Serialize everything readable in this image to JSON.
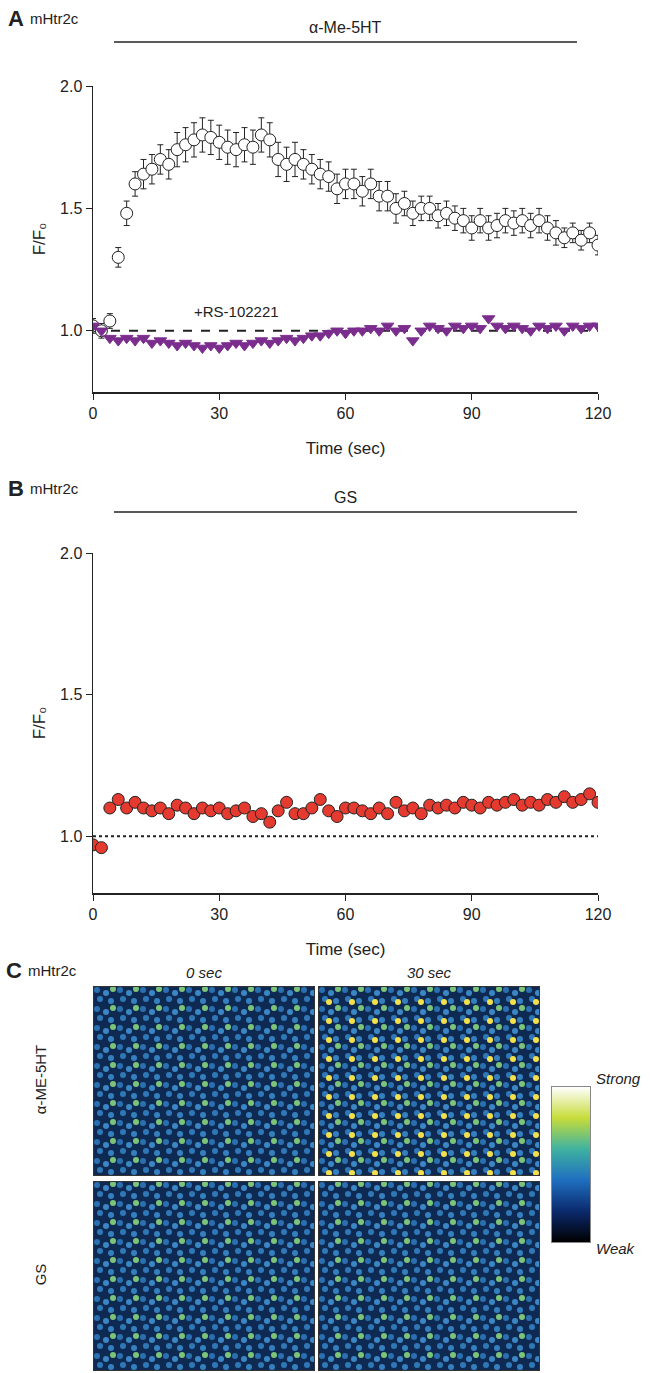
{
  "chart_data": [
    {
      "type": "scatter",
      "panel": "A",
      "title": "mHtr2c",
      "x_label": "Time (sec)",
      "y_label": "F/F₀",
      "xlim": [
        0,
        120
      ],
      "xticks": [
        0,
        30,
        60,
        90,
        120
      ],
      "ylim": [
        0.75,
        2.0
      ],
      "yticks": [
        {
          "value": 1.0,
          "label": "1.0"
        },
        {
          "value": 1.5,
          "label": "1.5"
        },
        {
          "value": 2.0,
          "label": "2.0"
        }
      ],
      "grid": false,
      "application": {
        "label": "α-Me-5HT",
        "start": 5,
        "end": 115
      },
      "reference_line": {
        "value": 1.0,
        "line_style": "dash"
      },
      "annotations": [
        {
          "text": "+RS-102221",
          "x": 34,
          "y": 1.08
        }
      ],
      "x": [
        0,
        2,
        4,
        6,
        8,
        10,
        12,
        14,
        16,
        18,
        20,
        22,
        24,
        26,
        28,
        30,
        32,
        34,
        36,
        38,
        40,
        42,
        44,
        46,
        48,
        50,
        52,
        54,
        56,
        58,
        60,
        62,
        64,
        66,
        68,
        70,
        72,
        74,
        76,
        78,
        80,
        82,
        84,
        86,
        88,
        90,
        92,
        94,
        96,
        98,
        100,
        102,
        104,
        106,
        108,
        110,
        112,
        114,
        116,
        118,
        120
      ],
      "series": [
        {
          "color": "#ffffff",
          "marker": "circle",
          "values": [
            1.02,
            1.0,
            1.04,
            1.3,
            1.48,
            1.6,
            1.64,
            1.66,
            1.7,
            1.68,
            1.74,
            1.76,
            1.78,
            1.8,
            1.79,
            1.77,
            1.75,
            1.74,
            1.76,
            1.75,
            1.8,
            1.78,
            1.7,
            1.68,
            1.7,
            1.68,
            1.66,
            1.64,
            1.63,
            1.58,
            1.6,
            1.6,
            1.57,
            1.6,
            1.55,
            1.55,
            1.5,
            1.52,
            1.48,
            1.5,
            1.5,
            1.47,
            1.48,
            1.46,
            1.45,
            1.42,
            1.45,
            1.42,
            1.43,
            1.45,
            1.44,
            1.45,
            1.43,
            1.45,
            1.42,
            1.4,
            1.38,
            1.4,
            1.37,
            1.4,
            1.35
          ],
          "errors": [
            0.03,
            0.03,
            0.03,
            0.04,
            0.05,
            0.05,
            0.06,
            0.06,
            0.06,
            0.06,
            0.07,
            0.07,
            0.07,
            0.07,
            0.07,
            0.07,
            0.07,
            0.07,
            0.07,
            0.07,
            0.07,
            0.07,
            0.07,
            0.07,
            0.07,
            0.06,
            0.06,
            0.06,
            0.06,
            0.06,
            0.06,
            0.06,
            0.06,
            0.06,
            0.06,
            0.06,
            0.06,
            0.05,
            0.05,
            0.05,
            0.05,
            0.05,
            0.05,
            0.05,
            0.05,
            0.05,
            0.05,
            0.05,
            0.05,
            0.05,
            0.05,
            0.05,
            0.05,
            0.05,
            0.05,
            0.05,
            0.04,
            0.04,
            0.04,
            0.04,
            0.04
          ]
        },
        {
          "color": "#7b2d8e",
          "marker": "triangle-down",
          "values": [
            1.02,
            1.0,
            0.97,
            0.96,
            0.97,
            0.96,
            0.97,
            0.95,
            0.96,
            0.95,
            0.94,
            0.95,
            0.94,
            0.93,
            0.94,
            0.93,
            0.94,
            0.95,
            0.94,
            0.95,
            0.96,
            0.95,
            0.96,
            0.97,
            0.96,
            0.97,
            0.98,
            0.98,
            0.99,
            1.0,
            0.99,
            1.0,
            1.0,
            1.01,
            1.0,
            1.02,
            1.0,
            1.01,
            0.96,
            1.0,
            1.02,
            1.01,
            1.0,
            1.02,
            1.01,
            1.02,
            1.01,
            1.05,
            1.02,
            1.01,
            1.02,
            1.01,
            1.0,
            1.02,
            1.01,
            1.02,
            1.0,
            1.02,
            1.01,
            1.02,
            1.02
          ]
        }
      ]
    },
    {
      "type": "scatter",
      "panel": "B",
      "title": "mHtr2c",
      "x_label": "Time (sec)",
      "y_label": "F/F₀",
      "xlim": [
        0,
        120
      ],
      "xticks": [
        0,
        30,
        60,
        90,
        120
      ],
      "ylim": [
        0.8,
        2.0
      ],
      "yticks": [
        {
          "value": 1.0,
          "label": "1.0"
        },
        {
          "value": 1.5,
          "label": "1.5"
        },
        {
          "value": 2.0,
          "label": "2.0"
        }
      ],
      "grid": false,
      "application": {
        "label": "GS",
        "start": 5,
        "end": 115
      },
      "reference_line": {
        "value": 1.0,
        "line_style": "dot"
      },
      "x": [
        0,
        2,
        4,
        6,
        8,
        10,
        12,
        14,
        16,
        18,
        20,
        22,
        24,
        26,
        28,
        30,
        32,
        34,
        36,
        38,
        40,
        42,
        44,
        46,
        48,
        50,
        52,
        54,
        56,
        58,
        60,
        62,
        64,
        66,
        68,
        70,
        72,
        74,
        76,
        78,
        80,
        82,
        84,
        86,
        88,
        90,
        92,
        94,
        96,
        98,
        100,
        102,
        104,
        106,
        108,
        110,
        112,
        114,
        116,
        118,
        120
      ],
      "series": [
        {
          "color": "#e53a2f",
          "marker": "circle",
          "values": [
            0.97,
            0.96,
            1.1,
            1.13,
            1.1,
            1.12,
            1.1,
            1.09,
            1.1,
            1.08,
            1.11,
            1.1,
            1.08,
            1.1,
            1.09,
            1.1,
            1.08,
            1.09,
            1.1,
            1.07,
            1.08,
            1.05,
            1.09,
            1.12,
            1.08,
            1.08,
            1.1,
            1.13,
            1.09,
            1.07,
            1.1,
            1.1,
            1.09,
            1.08,
            1.1,
            1.08,
            1.12,
            1.09,
            1.1,
            1.08,
            1.11,
            1.1,
            1.11,
            1.1,
            1.12,
            1.11,
            1.1,
            1.12,
            1.11,
            1.12,
            1.13,
            1.11,
            1.12,
            1.11,
            1.13,
            1.12,
            1.14,
            1.12,
            1.13,
            1.15,
            1.12
          ]
        }
      ]
    }
  ],
  "panel_c": {
    "panel": "C",
    "title": "mHtr2c",
    "columns": [
      "0 sec",
      "30 sec"
    ],
    "rows": [
      "α-ME-5HT",
      "GS"
    ],
    "colorbar": {
      "high": "Strong",
      "low": "Weak"
    }
  }
}
